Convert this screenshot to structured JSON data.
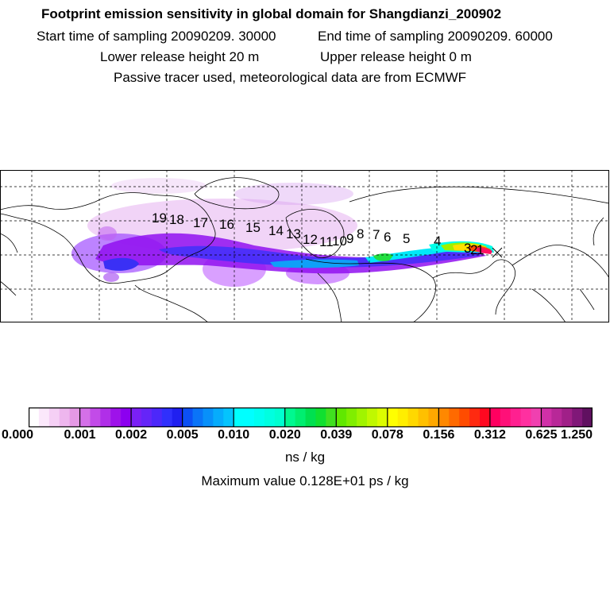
{
  "header": {
    "title": "Footprint emission sensitivity in global domain for Shangdianzi_200902",
    "start_time": "Start time of sampling 20090209. 30000",
    "end_time": "End time of sampling 20090209. 60000",
    "lower_release": "Lower release height   20 m",
    "upper_release": "Upper release height    0 m",
    "tracer_note": "Passive tracer used, meteorological data are from ECMWF"
  },
  "map": {
    "trajectory_labels": [
      "1",
      "2",
      "3",
      "4",
      "5",
      "6",
      "7",
      "8",
      "9",
      "10",
      "11",
      "12",
      "13",
      "14",
      "15",
      "16",
      "17",
      "18",
      "19"
    ],
    "receptor_marker": "x"
  },
  "colorbar": {
    "tick_labels": [
      "0.000",
      "0.001",
      "0.002",
      "0.005",
      "0.010",
      "0.020",
      "0.039",
      "0.078",
      "0.156",
      "0.312",
      "0.625",
      "1.250"
    ],
    "colors": [
      [
        "#ffffff",
        "#fbe8fb",
        "#f5d0f5",
        "#eeb6ee",
        "#e599e5"
      ],
      [
        "#d470e8",
        "#c24be8",
        "#b02fe8",
        "#9e12ea",
        "#8c00f0"
      ],
      [
        "#7a20f5",
        "#6525f8",
        "#4c28fa",
        "#3030fc",
        "#2020f0"
      ],
      [
        "#0c50f5",
        "#0a74f8",
        "#0890fa",
        "#06acfc",
        "#04c4fd"
      ],
      [
        "#00ffff",
        "#00ffff",
        "#00fff0",
        "#00ffe0",
        "#00ffd0"
      ],
      [
        "#00f890",
        "#00ee70",
        "#00e050",
        "#10e030",
        "#40e020"
      ],
      [
        "#60e800",
        "#80ee00",
        "#a0f400",
        "#c0f800",
        "#dcfc00"
      ],
      [
        "#ffff00",
        "#ffee00",
        "#ffd800",
        "#ffc000",
        "#ffa800"
      ],
      [
        "#ff8800",
        "#ff6a00",
        "#ff4c00",
        "#ff2a10",
        "#ff0820"
      ],
      [
        "#ff0060",
        "#ff1078",
        "#ff2090",
        "#ff30a0",
        "#f040b0"
      ],
      [
        "#d030a8",
        "#b82898",
        "#a02088",
        "#801878",
        "#601060"
      ]
    ],
    "unit": "ns / kg",
    "max_value": "Maximum value  0.128E+01 ps / kg"
  }
}
